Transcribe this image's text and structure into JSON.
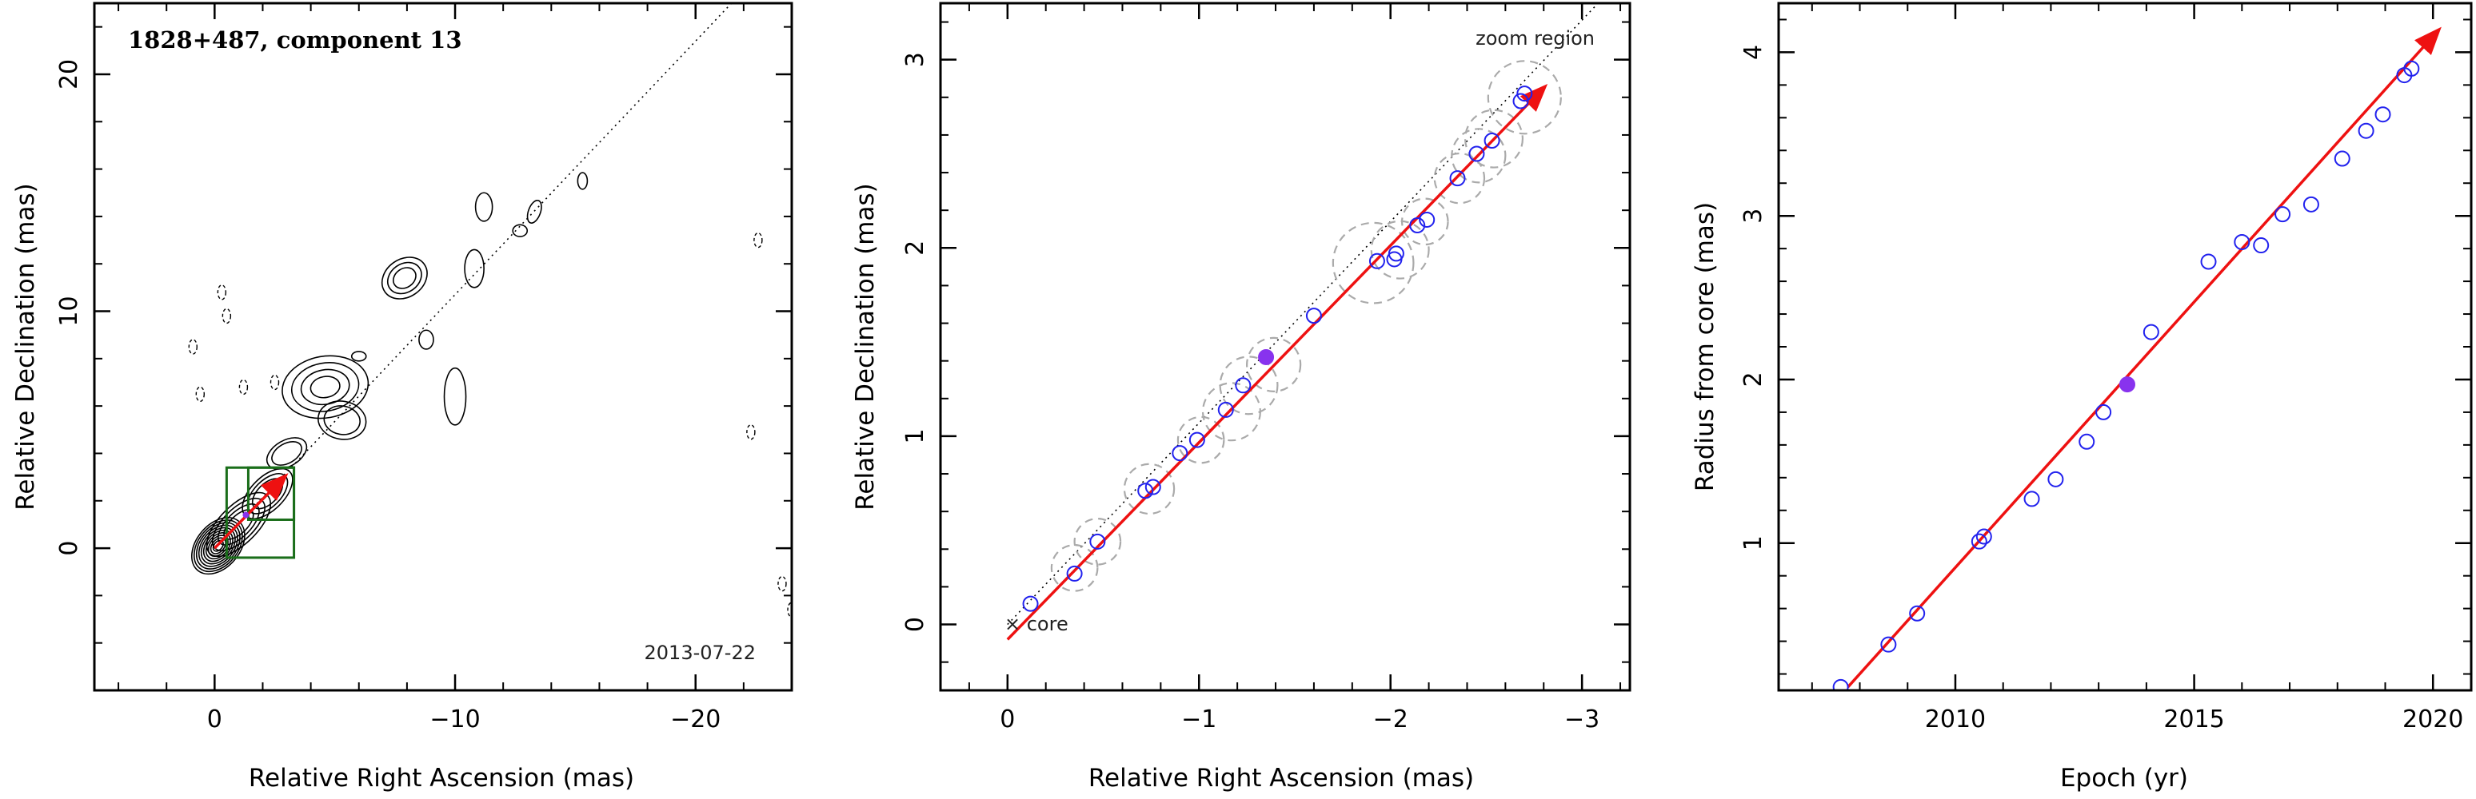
{
  "chart_data": [
    {
      "type": "contour",
      "title": "1828+487, component 13",
      "annotation": "2013-07-22",
      "xlabel": "Relative Right Ascension (mas)",
      "ylabel": "Relative Declination (mas)",
      "xlim": [
        5,
        -24
      ],
      "ylim": [
        -6,
        23
      ],
      "x_ticks": [
        0,
        -10,
        -20
      ],
      "x_tick_labels": [
        "0",
        "−10",
        "−20"
      ],
      "y_ticks": [
        0,
        10,
        20
      ],
      "y_tick_labels": [
        "0",
        "10",
        "20"
      ],
      "zoom_box": {
        "x": [
          -0.5,
          -3.3
        ],
        "y": [
          -0.4,
          3.4
        ]
      },
      "jet_axis_slope": 1.07,
      "arrow": {
        "from": [
          0.0,
          0.0
        ],
        "to": [
          -2.9,
          3.0
        ]
      },
      "highlight_point": [
        -1.3,
        1.4
      ],
      "colors": {
        "contour": "#000000",
        "box": "#1a6e1a",
        "arrow": "#ee1111",
        "highlight": "#8833ee"
      }
    },
    {
      "type": "scatter",
      "annotation_top": "zoom region",
      "annotation_core": "× core",
      "xlabel": "Relative Right Ascension (mas)",
      "ylabel": "Relative Declination (mas)",
      "xlim": [
        0.35,
        -3.25
      ],
      "ylim": [
        -0.35,
        3.3
      ],
      "x_ticks": [
        0,
        -1,
        -2,
        -3
      ],
      "x_tick_labels": [
        "0",
        "−1",
        "−2",
        "−3"
      ],
      "y_ticks": [
        0,
        1,
        2,
        3
      ],
      "y_tick_labels": [
        "0",
        "1",
        "2",
        "3"
      ],
      "points": [
        {
          "x": -0.12,
          "y": 0.11
        },
        {
          "x": -0.35,
          "y": 0.27
        },
        {
          "x": -0.47,
          "y": 0.44
        },
        {
          "x": -0.72,
          "y": 0.71
        },
        {
          "x": -0.76,
          "y": 0.73
        },
        {
          "x": -0.9,
          "y": 0.91
        },
        {
          "x": -0.99,
          "y": 0.98
        },
        {
          "x": -1.14,
          "y": 1.14
        },
        {
          "x": -1.23,
          "y": 1.27
        },
        {
          "x": -1.6,
          "y": 1.64
        },
        {
          "x": -1.93,
          "y": 1.93
        },
        {
          "x": -2.02,
          "y": 1.94
        },
        {
          "x": -2.03,
          "y": 1.97
        },
        {
          "x": -2.14,
          "y": 2.12
        },
        {
          "x": -2.19,
          "y": 2.15
        },
        {
          "x": -2.35,
          "y": 2.37
        },
        {
          "x": -2.45,
          "y": 2.5
        },
        {
          "x": -2.53,
          "y": 2.57
        },
        {
          "x": -2.68,
          "y": 2.78
        },
        {
          "x": -2.7,
          "y": 2.82
        }
      ],
      "highlight_point": {
        "x": -1.35,
        "y": 1.42
      },
      "uncertainty_circles": [
        {
          "x": -0.35,
          "y": 0.3,
          "r": 0.12
        },
        {
          "x": -0.47,
          "y": 0.44,
          "r": 0.12
        },
        {
          "x": -0.74,
          "y": 0.72,
          "r": 0.13
        },
        {
          "x": -1.01,
          "y": 0.98,
          "r": 0.12
        },
        {
          "x": -1.17,
          "y": 1.13,
          "r": 0.15
        },
        {
          "x": -1.26,
          "y": 1.27,
          "r": 0.15
        },
        {
          "x": -1.39,
          "y": 1.38,
          "r": 0.14
        },
        {
          "x": -1.91,
          "y": 1.92,
          "r": 0.21
        },
        {
          "x": -2.05,
          "y": 1.99,
          "r": 0.15
        },
        {
          "x": -2.18,
          "y": 2.14,
          "r": 0.12
        },
        {
          "x": -2.36,
          "y": 2.37,
          "r": 0.13
        },
        {
          "x": -2.46,
          "y": 2.49,
          "r": 0.14
        },
        {
          "x": -2.54,
          "y": 2.58,
          "r": 0.15
        },
        {
          "x": -2.7,
          "y": 2.8,
          "r": 0.19
        }
      ],
      "arrow": {
        "from": [
          0.0,
          -0.08
        ],
        "to": [
          -2.8,
          2.85
        ]
      },
      "colors": {
        "point": "#2222ee",
        "highlight": "#8833ee",
        "arrow": "#ee1111",
        "circle": "#aaaaaa"
      }
    },
    {
      "type": "scatter",
      "xlabel": "Epoch (yr)",
      "ylabel": "Radius from core (mas)",
      "xlim": [
        2006.3,
        2020.8
      ],
      "ylim": [
        0.1,
        4.3
      ],
      "x_ticks": [
        2010,
        2015,
        2020
      ],
      "x_tick_labels": [
        "2010",
        "2015",
        "2020"
      ],
      "y_ticks": [
        1,
        2,
        3,
        4
      ],
      "y_tick_labels": [
        "1",
        "2",
        "3",
        "4"
      ],
      "points": [
        {
          "x": 2007.6,
          "y": 0.12
        },
        {
          "x": 2008.6,
          "y": 0.38
        },
        {
          "x": 2009.2,
          "y": 0.57
        },
        {
          "x": 2010.5,
          "y": 1.01
        },
        {
          "x": 2010.6,
          "y": 1.04
        },
        {
          "x": 2011.6,
          "y": 1.27
        },
        {
          "x": 2012.1,
          "y": 1.39
        },
        {
          "x": 2012.75,
          "y": 1.62
        },
        {
          "x": 2013.1,
          "y": 1.8
        },
        {
          "x": 2014.1,
          "y": 2.29
        },
        {
          "x": 2015.3,
          "y": 2.72
        },
        {
          "x": 2016.0,
          "y": 2.84
        },
        {
          "x": 2016.4,
          "y": 2.82
        },
        {
          "x": 2016.85,
          "y": 3.01
        },
        {
          "x": 2017.45,
          "y": 3.07
        },
        {
          "x": 2018.1,
          "y": 3.35
        },
        {
          "x": 2018.6,
          "y": 3.52
        },
        {
          "x": 2018.95,
          "y": 3.62
        },
        {
          "x": 2019.4,
          "y": 3.86
        },
        {
          "x": 2019.55,
          "y": 3.9
        }
      ],
      "highlight_point": {
        "x": 2013.6,
        "y": 1.97
      },
      "fit_line": {
        "from": [
          2007.75,
          0.12
        ],
        "to": [
          2020.1,
          4.13
        ]
      },
      "colors": {
        "point": "#2222ee",
        "highlight": "#8833ee",
        "arrow": "#ee1111"
      }
    }
  ]
}
